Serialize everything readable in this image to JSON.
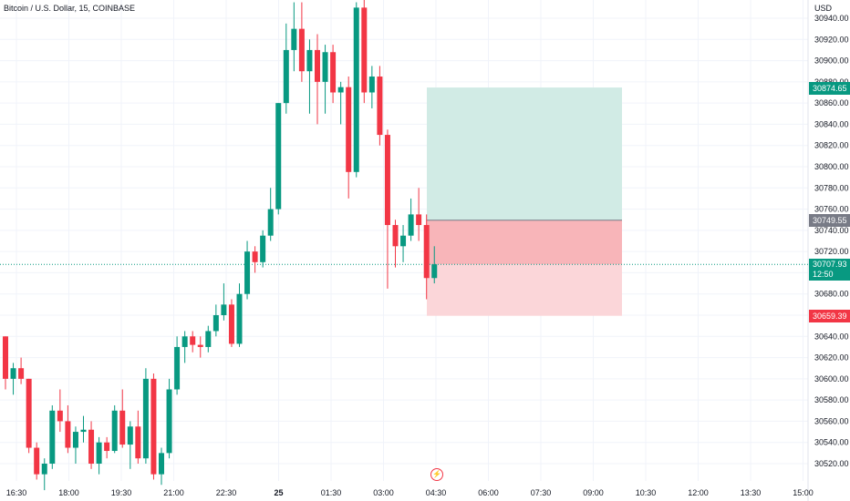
{
  "header": {
    "title": "Bitcoin / U.S. Dollar, 15, COINBASE",
    "currency": "USD"
  },
  "tags": {
    "target": "30874.65",
    "entry": "30749.55",
    "last_price": "30707.93",
    "countdown": "12:50",
    "stop": "30659.39"
  },
  "colors": {
    "up": "#089981",
    "down": "#f23645",
    "profit_zone": "#d1ebe5",
    "loss_zone_active": "#f8b5b9",
    "loss_zone": "#fbd6d9",
    "grid": "#f0f3fa"
  },
  "icons": {
    "event": "lightning-bolt-icon"
  },
  "chart_data": {
    "type": "candlestick",
    "title": "Bitcoin / U.S. Dollar, 15, COINBASE",
    "y_axis": {
      "ticks": [
        "30520.00",
        "30540.00",
        "30560.00",
        "30580.00",
        "30600.00",
        "30620.00",
        "30640.00",
        "30660.00",
        "30680.00",
        "30700.00",
        "30720.00",
        "30740.00",
        "30760.00",
        "30780.00",
        "30800.00",
        "30820.00",
        "30840.00",
        "30860.00",
        "30880.00",
        "30900.00",
        "30920.00",
        "30940.00"
      ],
      "unit": "USD"
    },
    "x_axis": {
      "ticks": [
        "16:30",
        "18:00",
        "19:30",
        "21:00",
        "22:30",
        "25",
        "01:30",
        "03:00",
        "04:30",
        "06:00",
        "07:30",
        "09:00",
        "10:30",
        "12:00",
        "13:30",
        "15:00"
      ]
    },
    "candles": [
      {
        "o": 30640,
        "h": 30640,
        "l": 30590,
        "c": 30600
      },
      {
        "o": 30600,
        "h": 30615,
        "l": 30585,
        "c": 30610
      },
      {
        "o": 30610,
        "h": 30620,
        "l": 30595,
        "c": 30600
      },
      {
        "o": 30600,
        "h": 30600,
        "l": 30530,
        "c": 30535
      },
      {
        "o": 30535,
        "h": 30540,
        "l": 30505,
        "c": 30510
      },
      {
        "o": 30510,
        "h": 30525,
        "l": 30495,
        "c": 30520
      },
      {
        "o": 30520,
        "h": 30575,
        "l": 30515,
        "c": 30570
      },
      {
        "o": 30570,
        "h": 30590,
        "l": 30550,
        "c": 30560
      },
      {
        "o": 30560,
        "h": 30575,
        "l": 30530,
        "c": 30535
      },
      {
        "o": 30535,
        "h": 30555,
        "l": 30520,
        "c": 30550
      },
      {
        "o": 30550,
        "h": 30565,
        "l": 30540,
        "c": 30552
      },
      {
        "o": 30552,
        "h": 30560,
        "l": 30515,
        "c": 30520
      },
      {
        "o": 30520,
        "h": 30545,
        "l": 30510,
        "c": 30540
      },
      {
        "o": 30540,
        "h": 30545,
        "l": 30525,
        "c": 30532
      },
      {
        "o": 30532,
        "h": 30575,
        "l": 30530,
        "c": 30570
      },
      {
        "o": 30570,
        "h": 30590,
        "l": 30535,
        "c": 30538
      },
      {
        "o": 30538,
        "h": 30560,
        "l": 30515,
        "c": 30555
      },
      {
        "o": 30555,
        "h": 30570,
        "l": 30520,
        "c": 30525
      },
      {
        "o": 30525,
        "h": 30610,
        "l": 30520,
        "c": 30600
      },
      {
        "o": 30600,
        "h": 30605,
        "l": 30505,
        "c": 30510
      },
      {
        "o": 30510,
        "h": 30535,
        "l": 30500,
        "c": 30530
      },
      {
        "o": 30530,
        "h": 30600,
        "l": 30525,
        "c": 30590
      },
      {
        "o": 30590,
        "h": 30640,
        "l": 30585,
        "c": 30630
      },
      {
        "o": 30630,
        "h": 30645,
        "l": 30615,
        "c": 30640
      },
      {
        "o": 30640,
        "h": 30645,
        "l": 30625,
        "c": 30632
      },
      {
        "o": 30632,
        "h": 30640,
        "l": 30620,
        "c": 30630
      },
      {
        "o": 30630,
        "h": 30650,
        "l": 30625,
        "c": 30645
      },
      {
        "o": 30645,
        "h": 30670,
        "l": 30640,
        "c": 30660
      },
      {
        "o": 30660,
        "h": 30690,
        "l": 30655,
        "c": 30670
      },
      {
        "o": 30670,
        "h": 30675,
        "l": 30630,
        "c": 30633
      },
      {
        "o": 30633,
        "h": 30690,
        "l": 30630,
        "c": 30680
      },
      {
        "o": 30680,
        "h": 30730,
        "l": 30675,
        "c": 30720
      },
      {
        "o": 30720,
        "h": 30725,
        "l": 30700,
        "c": 30710
      },
      {
        "o": 30710,
        "h": 30740,
        "l": 30705,
        "c": 30735
      },
      {
        "o": 30735,
        "h": 30780,
        "l": 30730,
        "c": 30760
      },
      {
        "o": 30760,
        "h": 30860,
        "l": 30755,
        "c": 30860
      },
      {
        "o": 30860,
        "h": 30935,
        "l": 30850,
        "c": 30910
      },
      {
        "o": 30910,
        "h": 30955,
        "l": 30890,
        "c": 30930
      },
      {
        "o": 30930,
        "h": 30955,
        "l": 30880,
        "c": 30890
      },
      {
        "o": 30890,
        "h": 30920,
        "l": 30850,
        "c": 30910
      },
      {
        "o": 30910,
        "h": 30925,
        "l": 30840,
        "c": 30880
      },
      {
        "o": 30880,
        "h": 30915,
        "l": 30850,
        "c": 30908
      },
      {
        "o": 30908,
        "h": 30915,
        "l": 30860,
        "c": 30870
      },
      {
        "o": 30870,
        "h": 30880,
        "l": 30840,
        "c": 30875
      },
      {
        "o": 30875,
        "h": 30885,
        "l": 30770,
        "c": 30795
      },
      {
        "o": 30795,
        "h": 30955,
        "l": 30790,
        "c": 30950
      },
      {
        "o": 30950,
        "h": 30960,
        "l": 30860,
        "c": 30870
      },
      {
        "o": 30870,
        "h": 30895,
        "l": 30855,
        "c": 30885
      },
      {
        "o": 30885,
        "h": 30895,
        "l": 30820,
        "c": 30830
      },
      {
        "o": 30830,
        "h": 30835,
        "l": 30685,
        "c": 30745
      },
      {
        "o": 30745,
        "h": 30750,
        "l": 30705,
        "c": 30725
      },
      {
        "o": 30725,
        "h": 30745,
        "l": 30710,
        "c": 30735
      },
      {
        "o": 30735,
        "h": 30770,
        "l": 30730,
        "c": 30755
      },
      {
        "o": 30755,
        "h": 30780,
        "l": 30730,
        "c": 30745
      },
      {
        "o": 30745,
        "h": 30755,
        "l": 30675,
        "c": 30695
      },
      {
        "o": 30695,
        "h": 30725,
        "l": 30690,
        "c": 30708
      }
    ],
    "position": {
      "type": "long",
      "entry": 30749.55,
      "target": 30874.65,
      "stop": 30659.39,
      "last": 30707.93
    }
  }
}
